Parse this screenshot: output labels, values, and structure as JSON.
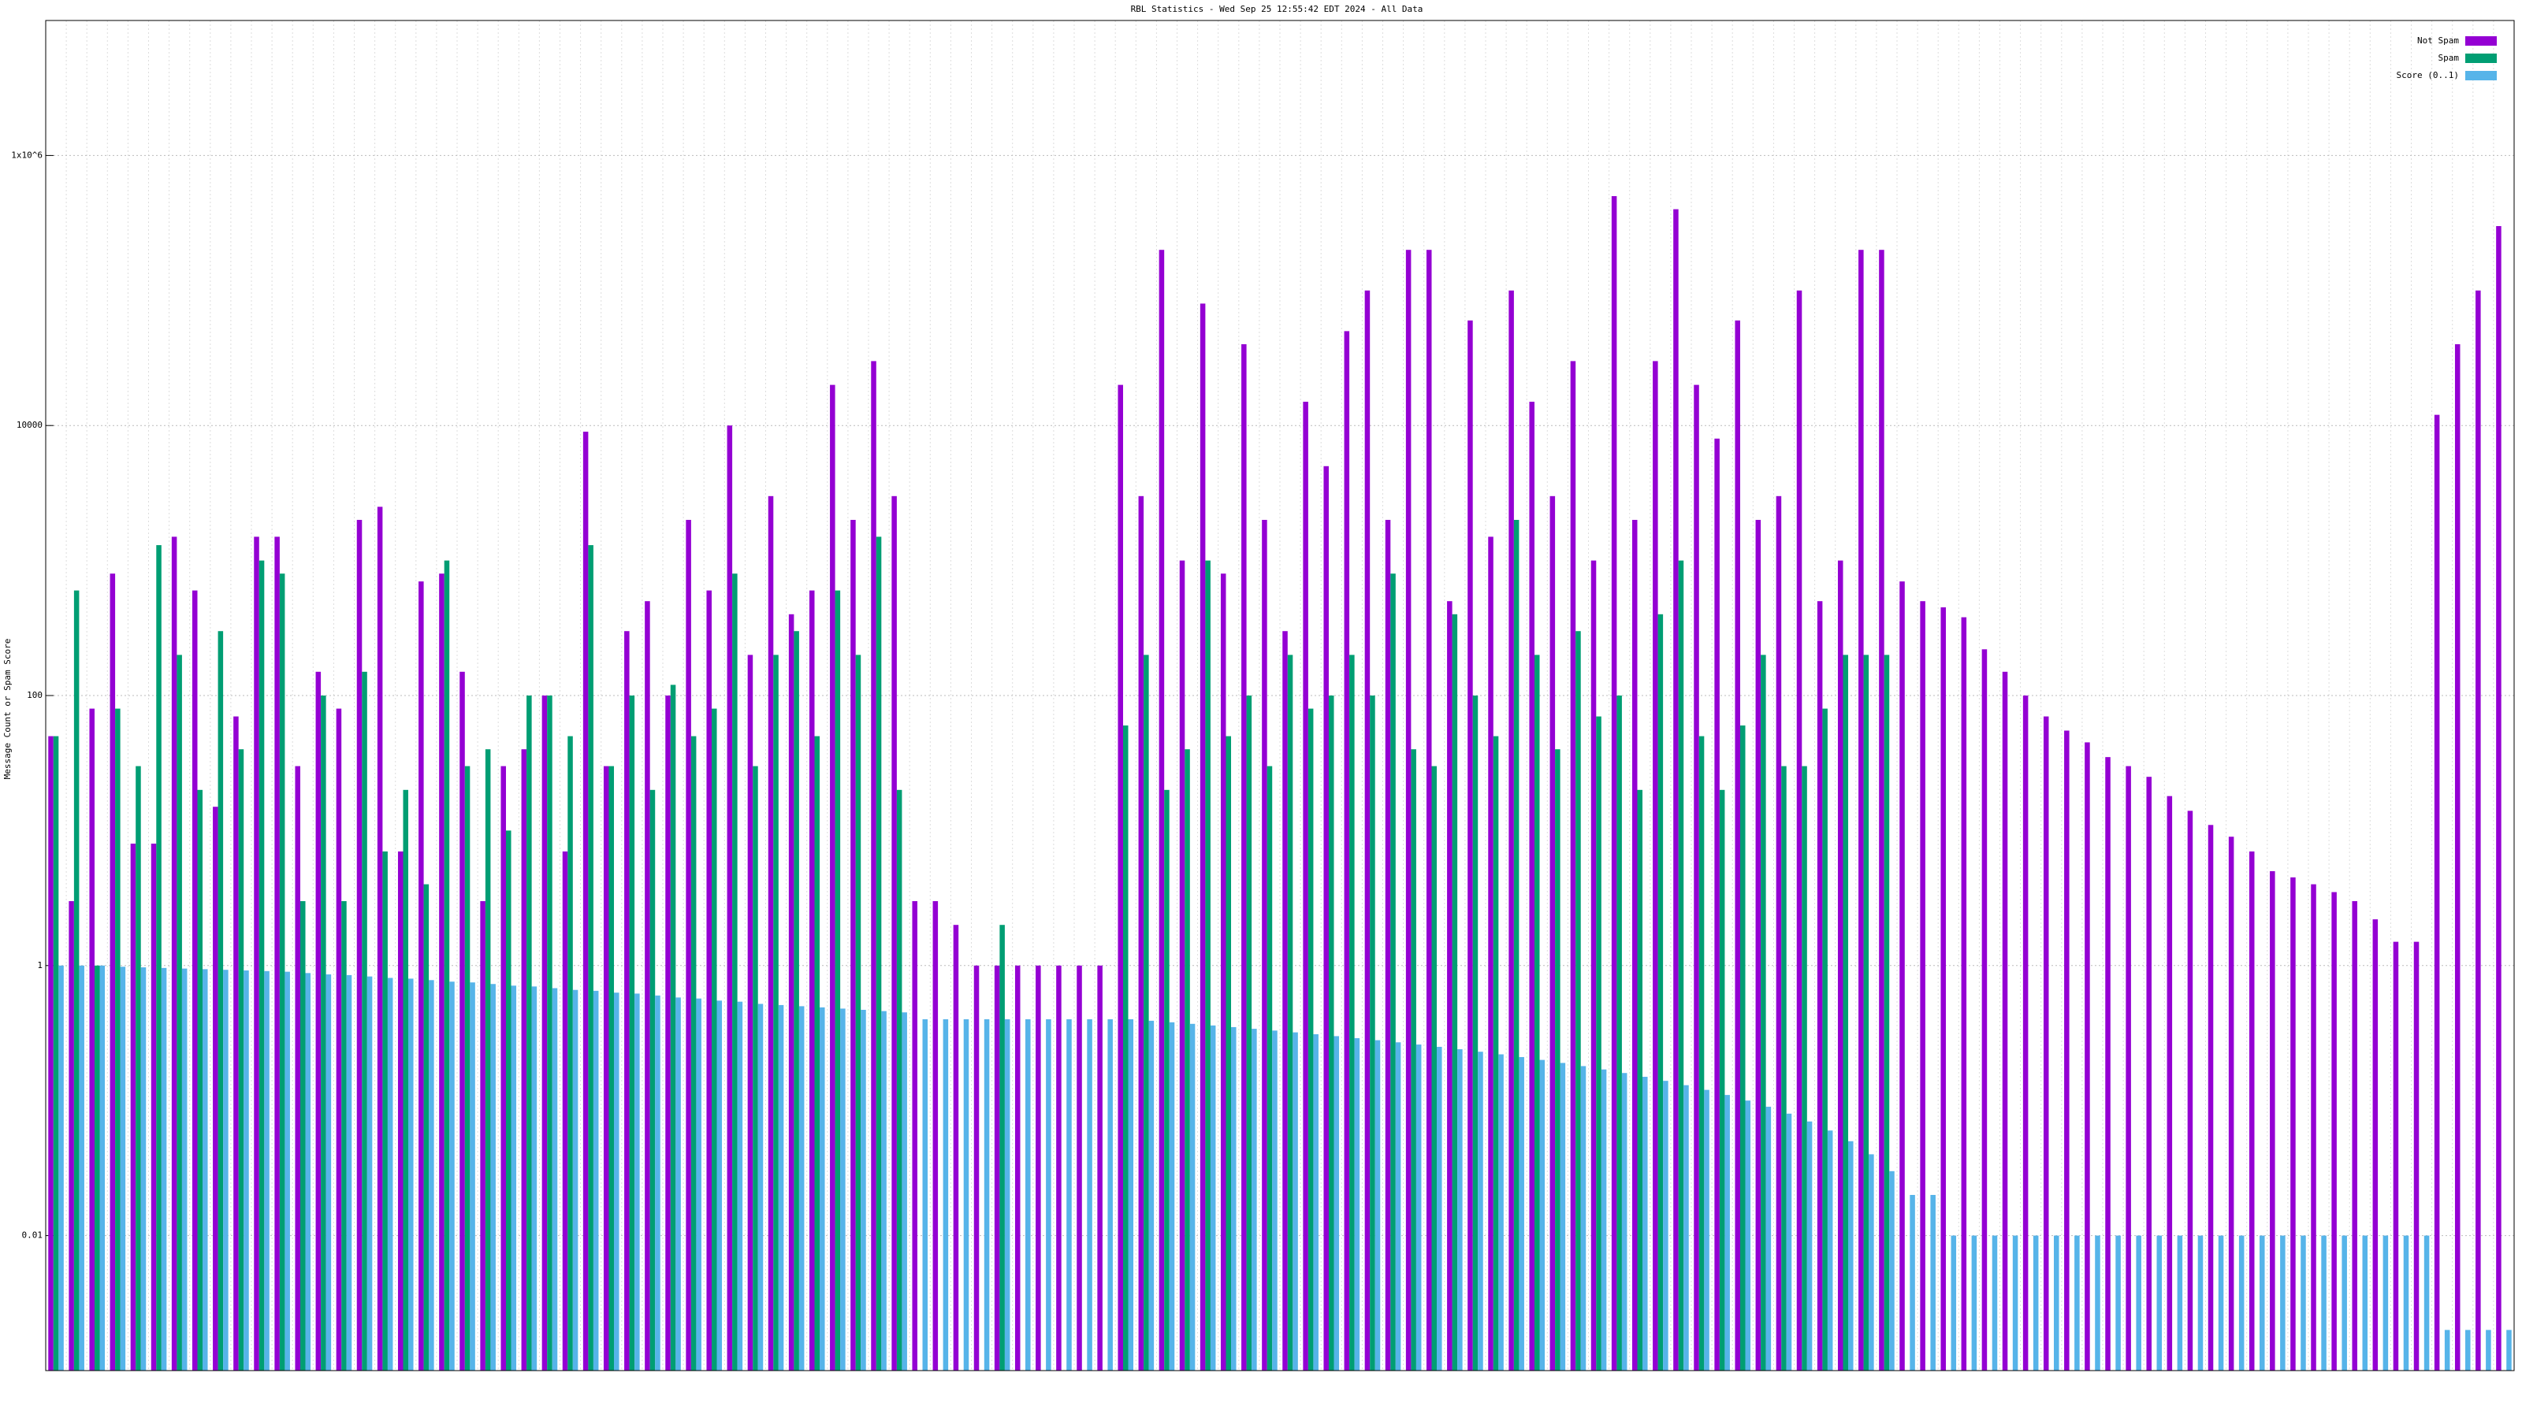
{
  "chart_data": {
    "type": "bar",
    "title": "RBL Statistics - Wed Sep 25 12:55:42 EDT 2024 - All Data",
    "y_label": "Message Count or Spam Score",
    "log_y": true,
    "grid": true,
    "legend": "upper right",
    "ylim": [
      0.001,
      10000000
    ],
    "yticks": [
      0.01,
      1,
      100,
      10000,
      {
        "value": 1000000,
        "label": "1x10^6"
      }
    ],
    "categories": [
      null,
      null,
      null,
      null,
      null,
      null,
      null,
      null,
      null,
      null,
      null,
      null,
      null,
      null,
      null,
      null,
      null,
      null,
      null,
      null,
      null,
      null,
      null,
      null,
      null,
      null,
      null,
      null,
      null,
      null,
      null,
      null,
      null,
      null,
      null,
      null,
      null,
      null,
      null,
      null,
      null,
      null,
      null,
      null,
      null,
      null,
      null,
      null,
      null,
      null,
      null,
      null,
      null,
      null,
      null,
      null,
      null,
      null,
      null,
      null,
      null,
      null,
      null,
      null,
      null,
      null,
      null,
      null,
      null,
      null,
      null,
      null,
      null,
      null,
      null,
      null,
      null,
      null,
      null,
      null,
      null,
      null,
      null,
      null,
      null,
      null,
      null,
      null,
      null,
      null,
      null,
      null,
      null,
      null,
      null,
      null,
      null,
      null,
      null,
      null,
      null,
      null,
      null,
      null,
      null,
      null,
      null,
      null,
      null,
      null,
      null,
      null,
      null,
      null,
      null,
      null,
      null,
      null,
      null,
      null
    ],
    "series": [
      {
        "name": "Not Spam",
        "color": "#9400d3",
        "values": [
          50,
          3,
          80,
          800,
          8,
          8,
          1500,
          600,
          15,
          70,
          1500,
          1500,
          30,
          150,
          80,
          2000,
          2500,
          7,
          700,
          800,
          150,
          3,
          30,
          40,
          100,
          7,
          9000,
          30,
          300,
          500,
          100,
          2000,
          600,
          10000,
          200,
          3000,
          400,
          600,
          20000,
          2000,
          30000,
          3000,
          3,
          3,
          2,
          1,
          1,
          1,
          1,
          1,
          1,
          1,
          20000,
          3000,
          200000,
          1000,
          80000,
          800,
          40000,
          2000,
          300,
          15000,
          5000,
          50000,
          100000,
          2000,
          200000,
          200000,
          500,
          60000,
          1500,
          100000,
          15000,
          3000,
          30000,
          1000,
          500000,
          2000,
          30000,
          400000,
          20000,
          8000,
          60000,
          2000,
          3000,
          100000,
          500,
          1000,
          200000,
          200000,
          700,
          500,
          450,
          380,
          220,
          150,
          100,
          70,
          55,
          45,
          35,
          30,
          25,
          18,
          14,
          11,
          9,
          7,
          5,
          4.5,
          4,
          3.5,
          3,
          2.2,
          1.5,
          1.5,
          12000,
          40000,
          100000,
          300000
        ]
      },
      {
        "name": "Spam",
        "color": "#009e73",
        "values": [
          50,
          600,
          1,
          80,
          30,
          1300,
          200,
          20,
          300,
          40,
          1000,
          800,
          3,
          100,
          3,
          150,
          7,
          20,
          4,
          1000,
          30,
          40,
          10,
          100,
          100,
          50,
          1300,
          30,
          100,
          20,
          120,
          50,
          80,
          800,
          30,
          200,
          300,
          50,
          600,
          200,
          1500,
          20,
          null,
          null,
          null,
          null,
          2,
          null,
          null,
          null,
          null,
          null,
          60,
          200,
          20,
          40,
          1000,
          50,
          100,
          30,
          200,
          80,
          100,
          200,
          100,
          800,
          40,
          30,
          400,
          100,
          50,
          2000,
          200,
          40,
          300,
          70,
          100,
          20,
          400,
          1000,
          50,
          20,
          60,
          200,
          30,
          30,
          80,
          200,
          200,
          200,
          null,
          null,
          null,
          null,
          null,
          null,
          null,
          null,
          null,
          null,
          null,
          null,
          null,
          null,
          null,
          null,
          null,
          null,
          null,
          null,
          null,
          null,
          null,
          null,
          null,
          null,
          null,
          null,
          null,
          null
        ]
      },
      {
        "name": "Score (0..1)",
        "color": "#56b4e9",
        "values": [
          1,
          1,
          1,
          0.98,
          0.97,
          0.96,
          0.95,
          0.94,
          0.93,
          0.92,
          0.91,
          0.9,
          0.88,
          0.86,
          0.85,
          0.83,
          0.81,
          0.8,
          0.78,
          0.76,
          0.75,
          0.73,
          0.71,
          0.7,
          0.68,
          0.66,
          0.65,
          0.63,
          0.62,
          0.6,
          0.58,
          0.57,
          0.55,
          0.54,
          0.52,
          0.51,
          0.5,
          0.49,
          0.48,
          0.47,
          0.46,
          0.45,
          0.4,
          0.4,
          0.4,
          0.4,
          0.4,
          0.4,
          0.4,
          0.4,
          0.4,
          0.4,
          0.4,
          0.39,
          0.38,
          0.37,
          0.36,
          0.35,
          0.34,
          0.33,
          0.32,
          0.31,
          0.3,
          0.29,
          0.28,
          0.27,
          0.26,
          0.25,
          0.24,
          0.23,
          0.22,
          0.21,
          0.2,
          0.19,
          0.18,
          0.17,
          0.16,
          0.15,
          0.14,
          0.13,
          0.12,
          0.11,
          0.1,
          0.09,
          0.08,
          0.07,
          0.06,
          0.05,
          0.04,
          0.03,
          0.02,
          0.02,
          0.01,
          0.01,
          0.01,
          0.01,
          0.01,
          0.01,
          0.01,
          0.01,
          0.01,
          0.01,
          0.01,
          0.01,
          0.01,
          0.01,
          0.01,
          0.01,
          0.01,
          0.01,
          0.01,
          0.01,
          0.01,
          0.01,
          0.01,
          0.01,
          0.002,
          0.002,
          0.002,
          0.002
        ]
      }
    ]
  }
}
